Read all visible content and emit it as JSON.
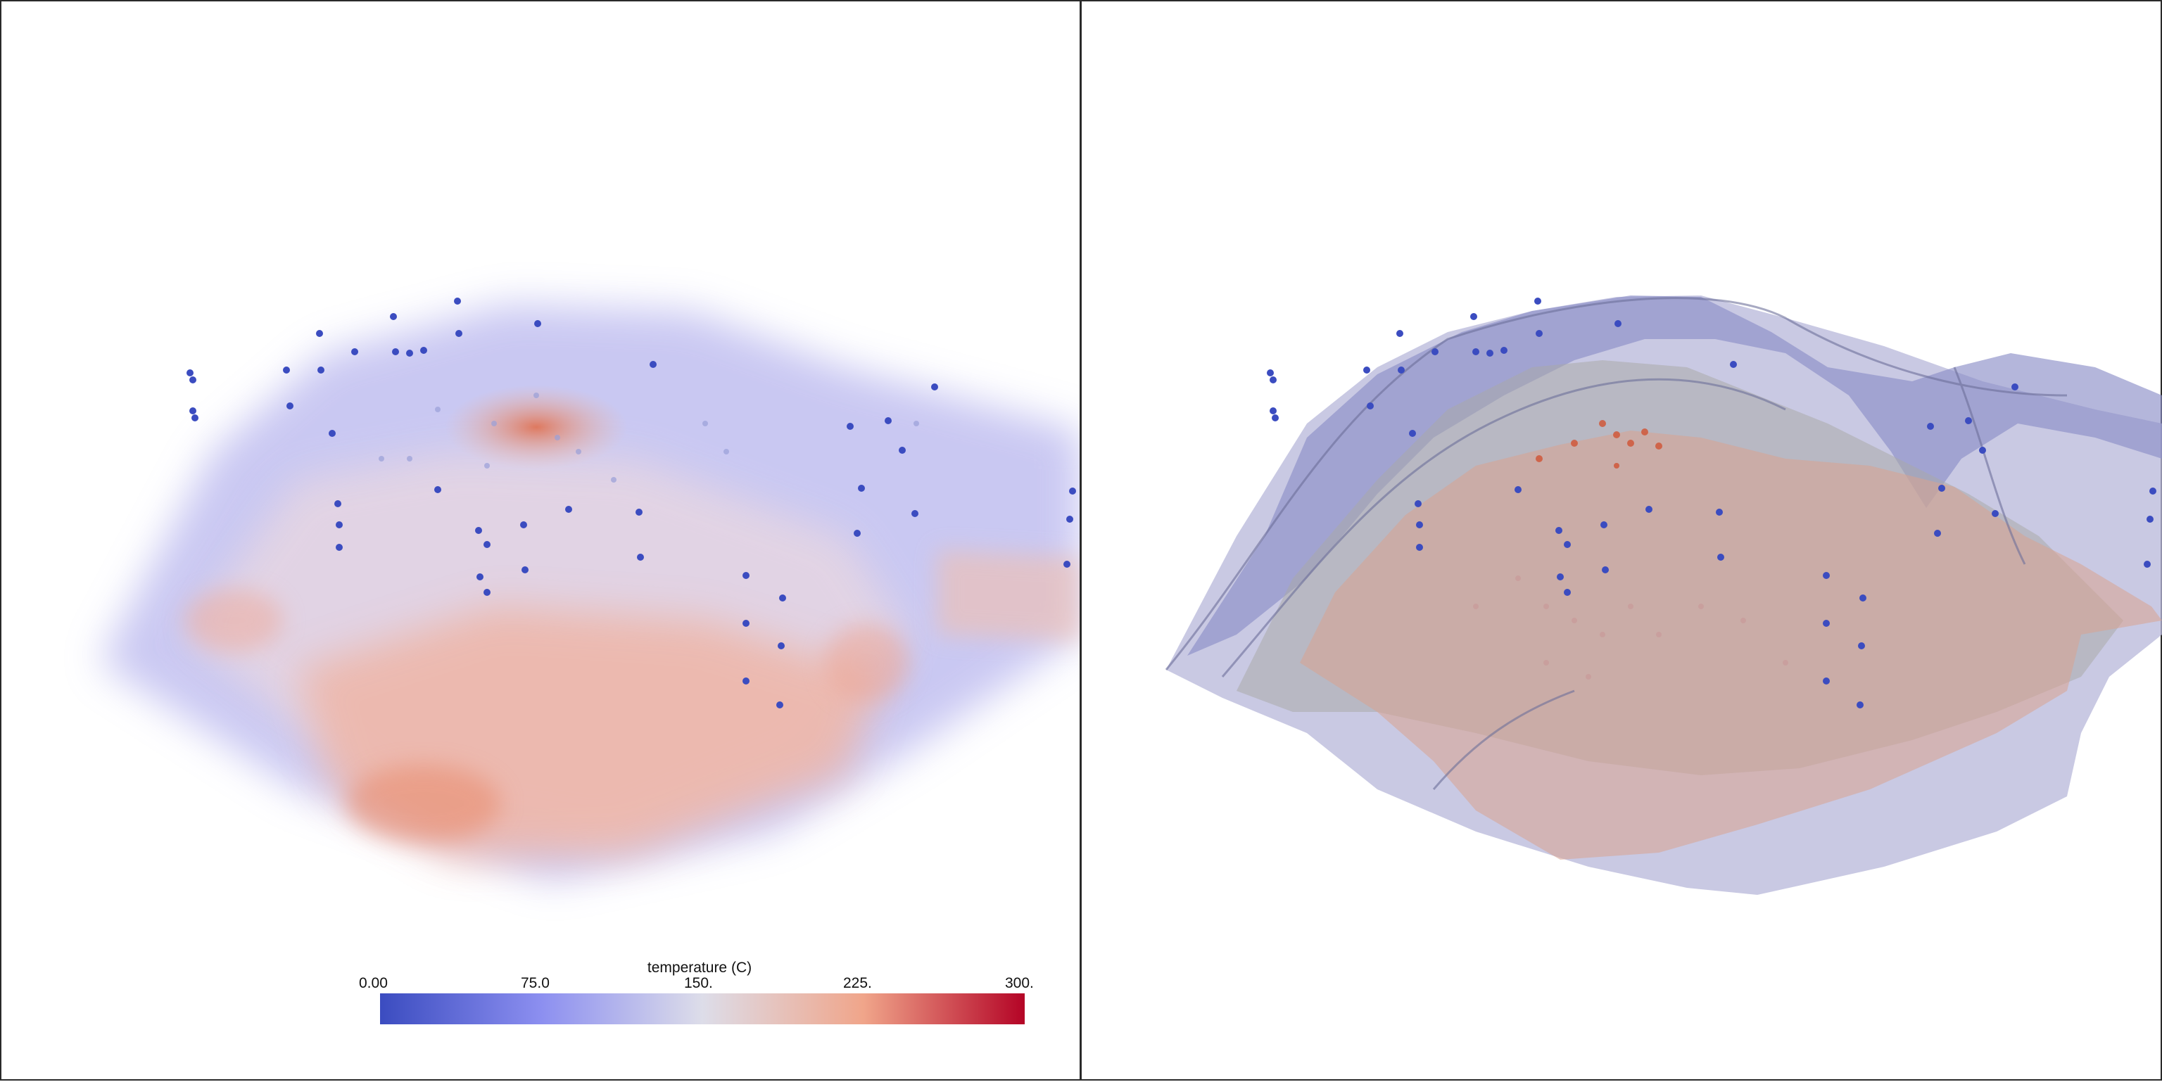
{
  "left_view": {
    "name": "volume-render-view"
  },
  "right_view": {
    "name": "isosurface-view"
  },
  "scalar_bar": {
    "title": "temperature (C)",
    "ticks": [
      "0.00",
      "75.0",
      "150.",
      "225.",
      "300."
    ],
    "range": [
      0,
      300
    ],
    "colormap": [
      "#3b4cc0",
      "#8c8ff0",
      "#dddde9",
      "#f0a58a",
      "#b40426"
    ]
  },
  "colors": {
    "cold": "#3b4cc0",
    "mid": "#dddde9",
    "hot": "#b40426",
    "iso_blue": "#8c8fc8",
    "iso_grey": "#9a9a9a",
    "iso_salmon": "#d9a38f"
  }
}
